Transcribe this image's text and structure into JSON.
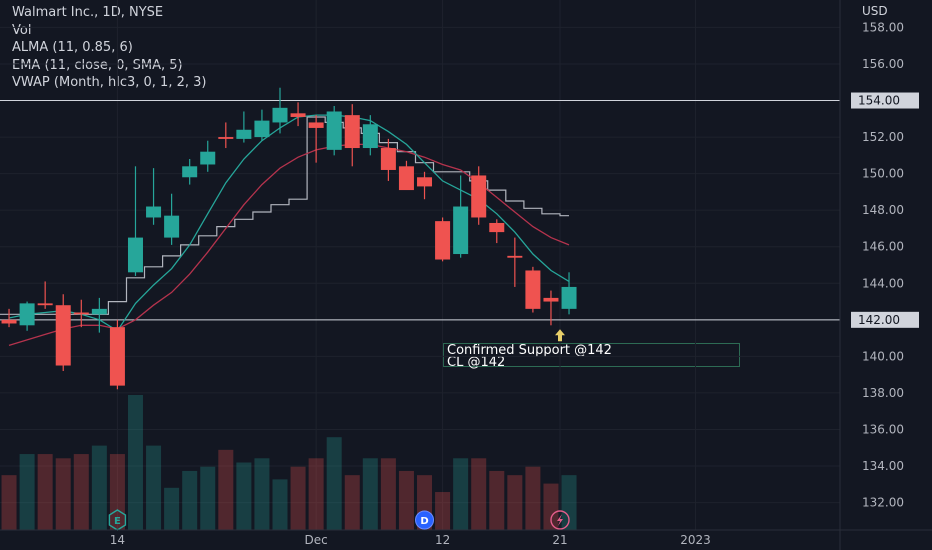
{
  "header": {
    "symbol_line": "Walmart Inc., 1D, NYSE",
    "indicators": [
      "Vol",
      "ALMA (11, 0.85, 6)",
      "EMA (11, close, 0, SMA, 5)",
      "VWAP (Month, hlc3, 0, 1, 2, 3)"
    ]
  },
  "colors": {
    "background": "#131722",
    "up": "#26a69a",
    "down": "#ef5350",
    "alma": "#26a69a",
    "ema": "#b5334d",
    "vwap": "#b2b5be",
    "hline": "#d1d4dc"
  },
  "annotation": {
    "line1": "Confirmed Support @142",
    "line2": "CL @142"
  },
  "events": {
    "earnings": "E",
    "dividend": "D",
    "split_icon": "lightning-icon"
  },
  "chart_data": {
    "type": "candlestick",
    "currency": "USD",
    "y_ticks": [
      132,
      134,
      136,
      138,
      140,
      142,
      144,
      146,
      148,
      150,
      152,
      154,
      156,
      158
    ],
    "ylim": [
      130.5,
      159.5
    ],
    "x_labels": [
      "14",
      "Dec",
      "12",
      "21",
      "2023"
    ],
    "x_label_index": [
      6,
      17,
      24,
      30.5,
      38
    ],
    "x_range": [
      -0.5,
      46
    ],
    "price_lines": [
      154.0,
      142.0
    ],
    "candles": [
      {
        "o": 142.0,
        "h": 142.6,
        "l": 141.6,
        "c": 141.8
      },
      {
        "o": 141.7,
        "h": 143.0,
        "l": 141.4,
        "c": 142.9
      },
      {
        "o": 142.9,
        "h": 144.1,
        "l": 142.6,
        "c": 142.8
      },
      {
        "o": 142.8,
        "h": 143.4,
        "l": 139.2,
        "c": 139.5
      },
      {
        "o": 142.4,
        "h": 143.1,
        "l": 141.6,
        "c": 142.3
      },
      {
        "o": 142.3,
        "h": 143.2,
        "l": 141.3,
        "c": 142.6
      },
      {
        "o": 141.6,
        "h": 142.0,
        "l": 138.2,
        "c": 138.4
      },
      {
        "o": 144.6,
        "h": 150.4,
        "l": 144.4,
        "c": 146.5
      },
      {
        "o": 147.6,
        "h": 150.3,
        "l": 147.2,
        "c": 148.2
      },
      {
        "o": 146.5,
        "h": 148.9,
        "l": 146.1,
        "c": 147.7
      },
      {
        "o": 149.8,
        "h": 150.8,
        "l": 149.4,
        "c": 150.4
      },
      {
        "o": 150.5,
        "h": 151.8,
        "l": 150.1,
        "c": 151.2
      },
      {
        "o": 152.0,
        "h": 152.8,
        "l": 151.4,
        "c": 151.9
      },
      {
        "o": 151.9,
        "h": 153.4,
        "l": 151.7,
        "c": 152.4
      },
      {
        "o": 152.0,
        "h": 153.5,
        "l": 151.8,
        "c": 152.9
      },
      {
        "o": 152.8,
        "h": 154.7,
        "l": 152.2,
        "c": 153.6
      },
      {
        "o": 153.3,
        "h": 153.9,
        "l": 152.6,
        "c": 153.1
      },
      {
        "o": 152.8,
        "h": 153.2,
        "l": 150.6,
        "c": 152.5
      },
      {
        "o": 151.3,
        "h": 153.7,
        "l": 151.0,
        "c": 153.4
      },
      {
        "o": 153.2,
        "h": 153.8,
        "l": 150.4,
        "c": 151.4
      },
      {
        "o": 151.4,
        "h": 153.2,
        "l": 151.0,
        "c": 152.7
      },
      {
        "o": 151.4,
        "h": 151.9,
        "l": 149.6,
        "c": 150.2
      },
      {
        "o": 150.4,
        "h": 150.7,
        "l": 149.3,
        "c": 149.1
      },
      {
        "o": 149.8,
        "h": 150.1,
        "l": 148.6,
        "c": 149.3
      },
      {
        "o": 147.4,
        "h": 147.6,
        "l": 145.2,
        "c": 145.3
      },
      {
        "o": 145.6,
        "h": 149.9,
        "l": 145.4,
        "c": 148.2
      },
      {
        "o": 149.9,
        "h": 150.4,
        "l": 147.2,
        "c": 147.6
      },
      {
        "o": 147.3,
        "h": 147.5,
        "l": 146.2,
        "c": 146.8
      },
      {
        "o": 145.5,
        "h": 146.5,
        "l": 143.8,
        "c": 145.4
      },
      {
        "o": 144.7,
        "h": 144.9,
        "l": 142.4,
        "c": 142.6
      },
      {
        "o": 143.2,
        "h": 143.6,
        "l": 141.7,
        "c": 143.0
      },
      {
        "o": 142.6,
        "h": 144.6,
        "l": 142.3,
        "c": 143.8
      }
    ],
    "volume": [
      13,
      18,
      18,
      17,
      18,
      20,
      18,
      32,
      20,
      10,
      14,
      15,
      19,
      16,
      17,
      12,
      15,
      17,
      22,
      13,
      17,
      17,
      14,
      13,
      9,
      17,
      17,
      14,
      13,
      15,
      11,
      13
    ],
    "alma": [
      142.1,
      142.3,
      142.4,
      142.5,
      142.3,
      142.0,
      141.4,
      142.9,
      143.9,
      144.8,
      146.1,
      147.8,
      149.5,
      150.8,
      151.8,
      152.5,
      153.1,
      153.2,
      153.2,
      153.1,
      152.9,
      152.3,
      151.6,
      150.6,
      149.6,
      149.1,
      148.6,
      147.8,
      146.8,
      145.6,
      144.7,
      144.1
    ],
    "ema": [
      140.6,
      140.9,
      141.2,
      141.5,
      141.7,
      141.7,
      141.5,
      142.0,
      142.8,
      143.5,
      144.5,
      145.7,
      147.0,
      148.3,
      149.4,
      150.3,
      150.9,
      151.3,
      151.5,
      151.6,
      151.6,
      151.4,
      151.2,
      150.9,
      150.5,
      150.2,
      149.5,
      148.7,
      147.9,
      147.1,
      146.5,
      146.1
    ],
    "vwap_step": [
      [
        -0.5,
        142.3
      ],
      [
        5.5,
        142.3
      ],
      [
        5.5,
        143.0
      ],
      [
        6.5,
        143.0
      ],
      [
        6.5,
        144.3
      ],
      [
        7.5,
        144.3
      ],
      [
        7.5,
        144.9
      ],
      [
        8.5,
        144.9
      ],
      [
        8.5,
        145.5
      ],
      [
        9.5,
        145.5
      ],
      [
        9.5,
        146.1
      ],
      [
        10.5,
        146.1
      ],
      [
        10.5,
        146.6
      ],
      [
        11.5,
        146.6
      ],
      [
        11.5,
        147.1
      ],
      [
        12.5,
        147.1
      ],
      [
        12.5,
        147.5
      ],
      [
        13.5,
        147.5
      ],
      [
        13.5,
        147.9
      ],
      [
        14.5,
        147.9
      ],
      [
        14.5,
        148.3
      ],
      [
        15.5,
        148.3
      ],
      [
        15.5,
        148.6
      ],
      [
        16.5,
        148.6
      ],
      [
        16.5,
        153.1
      ],
      [
        17.5,
        153.1
      ],
      [
        17.5,
        152.8
      ],
      [
        18.5,
        152.8
      ],
      [
        18.5,
        152.5
      ],
      [
        19.5,
        152.5
      ],
      [
        19.5,
        152.2
      ],
      [
        20.5,
        152.2
      ],
      [
        20.5,
        151.7
      ],
      [
        21.5,
        151.7
      ],
      [
        21.5,
        151.2
      ],
      [
        22.5,
        151.2
      ],
      [
        22.5,
        150.6
      ],
      [
        23.5,
        150.6
      ],
      [
        23.5,
        150.1
      ],
      [
        25.5,
        150.1
      ],
      [
        25.5,
        149.6
      ],
      [
        26.5,
        149.6
      ],
      [
        26.5,
        149.1
      ],
      [
        27.5,
        149.1
      ],
      [
        27.5,
        148.5
      ],
      [
        28.5,
        148.5
      ],
      [
        28.5,
        148.1
      ],
      [
        29.5,
        148.1
      ],
      [
        29.5,
        147.8
      ],
      [
        30.5,
        147.8
      ],
      [
        30.5,
        147.7
      ],
      [
        31,
        147.7
      ]
    ],
    "events": [
      {
        "type": "E",
        "index": 6
      },
      {
        "type": "D",
        "index": 23
      },
      {
        "type": "split",
        "index": 30.5
      }
    ],
    "annotation_arrow_index": 30.5,
    "annotation_arrow_price": 141.7
  }
}
